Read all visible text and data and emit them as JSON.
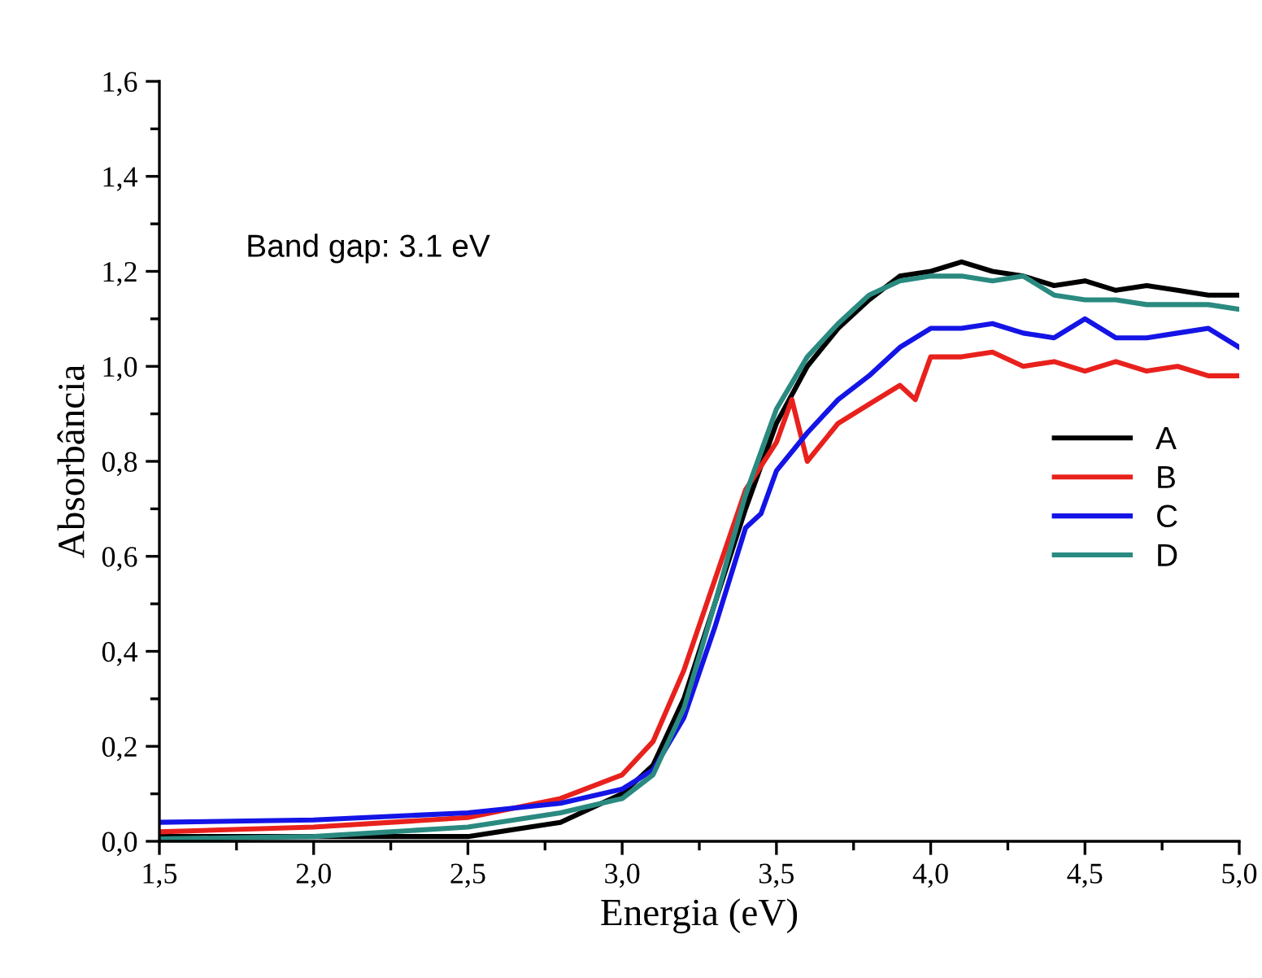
{
  "chart_data": {
    "type": "line",
    "xlabel": "Energia (eV)",
    "ylabel": "Absorbância",
    "xlim": [
      1.5,
      5.0
    ],
    "ylim": [
      0.0,
      1.6
    ],
    "xticks": [
      {
        "value": 1.5,
        "label": "1,5"
      },
      {
        "value": 2.0,
        "label": "2,0"
      },
      {
        "value": 2.5,
        "label": "2,5"
      },
      {
        "value": 3.0,
        "label": "3,0"
      },
      {
        "value": 3.5,
        "label": "3,5"
      },
      {
        "value": 4.0,
        "label": "4,0"
      },
      {
        "value": 4.5,
        "label": "4,5"
      },
      {
        "value": 5.0,
        "label": "5,0"
      }
    ],
    "yticks": [
      {
        "value": 0.0,
        "label": "0,0"
      },
      {
        "value": 0.2,
        "label": "0,2"
      },
      {
        "value": 0.4,
        "label": "0,4"
      },
      {
        "value": 0.6,
        "label": "0,6"
      },
      {
        "value": 0.8,
        "label": "0,8"
      },
      {
        "value": 1.0,
        "label": "1,0"
      },
      {
        "value": 1.2,
        "label": "1,2"
      },
      {
        "value": 1.4,
        "label": "1,4"
      },
      {
        "value": 1.6,
        "label": "1,6"
      }
    ],
    "annotations": [
      "Band gap: 3.1 eV"
    ],
    "legend": "right",
    "grid": false,
    "marker": "none",
    "line_style": "solid",
    "series": [
      {
        "name": "A",
        "color": "#000000",
        "x": [
          1.5,
          2.0,
          2.5,
          2.8,
          3.0,
          3.1,
          3.2,
          3.3,
          3.4,
          3.5,
          3.6,
          3.7,
          3.8,
          3.9,
          4.0,
          4.1,
          4.2,
          4.3,
          4.4,
          4.5,
          4.6,
          4.7,
          4.8,
          4.9,
          5.0
        ],
        "values": [
          0.01,
          0.01,
          0.01,
          0.04,
          0.1,
          0.16,
          0.3,
          0.5,
          0.7,
          0.88,
          1.0,
          1.08,
          1.14,
          1.19,
          1.2,
          1.22,
          1.2,
          1.19,
          1.17,
          1.18,
          1.16,
          1.17,
          1.16,
          1.15,
          1.15
        ]
      },
      {
        "name": "B",
        "color": "#e8211d",
        "x": [
          1.5,
          2.0,
          2.5,
          2.8,
          3.0,
          3.1,
          3.2,
          3.3,
          3.4,
          3.5,
          3.55,
          3.6,
          3.7,
          3.8,
          3.9,
          3.95,
          4.0,
          4.1,
          4.2,
          4.3,
          4.4,
          4.5,
          4.6,
          4.7,
          4.8,
          4.9,
          5.0
        ],
        "values": [
          0.02,
          0.03,
          0.05,
          0.09,
          0.14,
          0.21,
          0.36,
          0.55,
          0.74,
          0.84,
          0.93,
          0.8,
          0.88,
          0.92,
          0.96,
          0.93,
          1.02,
          1.02,
          1.03,
          1.0,
          1.01,
          0.99,
          1.01,
          0.99,
          1.0,
          0.98,
          0.98
        ]
      },
      {
        "name": "C",
        "color": "#1414e6",
        "x": [
          1.5,
          2.0,
          2.5,
          2.8,
          3.0,
          3.1,
          3.2,
          3.3,
          3.4,
          3.45,
          3.5,
          3.6,
          3.7,
          3.8,
          3.9,
          4.0,
          4.1,
          4.2,
          4.3,
          4.4,
          4.5,
          4.6,
          4.7,
          4.8,
          4.9,
          5.0
        ],
        "values": [
          0.04,
          0.045,
          0.06,
          0.08,
          0.11,
          0.15,
          0.26,
          0.45,
          0.66,
          0.69,
          0.78,
          0.86,
          0.93,
          0.98,
          1.04,
          1.08,
          1.08,
          1.09,
          1.07,
          1.06,
          1.1,
          1.06,
          1.06,
          1.07,
          1.08,
          1.04
        ]
      },
      {
        "name": "D",
        "color": "#2a8a80",
        "x": [
          1.5,
          2.0,
          2.5,
          2.8,
          3.0,
          3.1,
          3.2,
          3.3,
          3.4,
          3.5,
          3.6,
          3.7,
          3.8,
          3.9,
          4.0,
          4.1,
          4.2,
          4.3,
          4.4,
          4.5,
          4.6,
          4.7,
          4.8,
          4.9,
          5.0
        ],
        "values": [
          0.005,
          0.01,
          0.03,
          0.06,
          0.09,
          0.14,
          0.28,
          0.5,
          0.73,
          0.91,
          1.02,
          1.09,
          1.15,
          1.18,
          1.19,
          1.19,
          1.18,
          1.19,
          1.15,
          1.14,
          1.14,
          1.13,
          1.13,
          1.13,
          1.12
        ]
      }
    ]
  }
}
